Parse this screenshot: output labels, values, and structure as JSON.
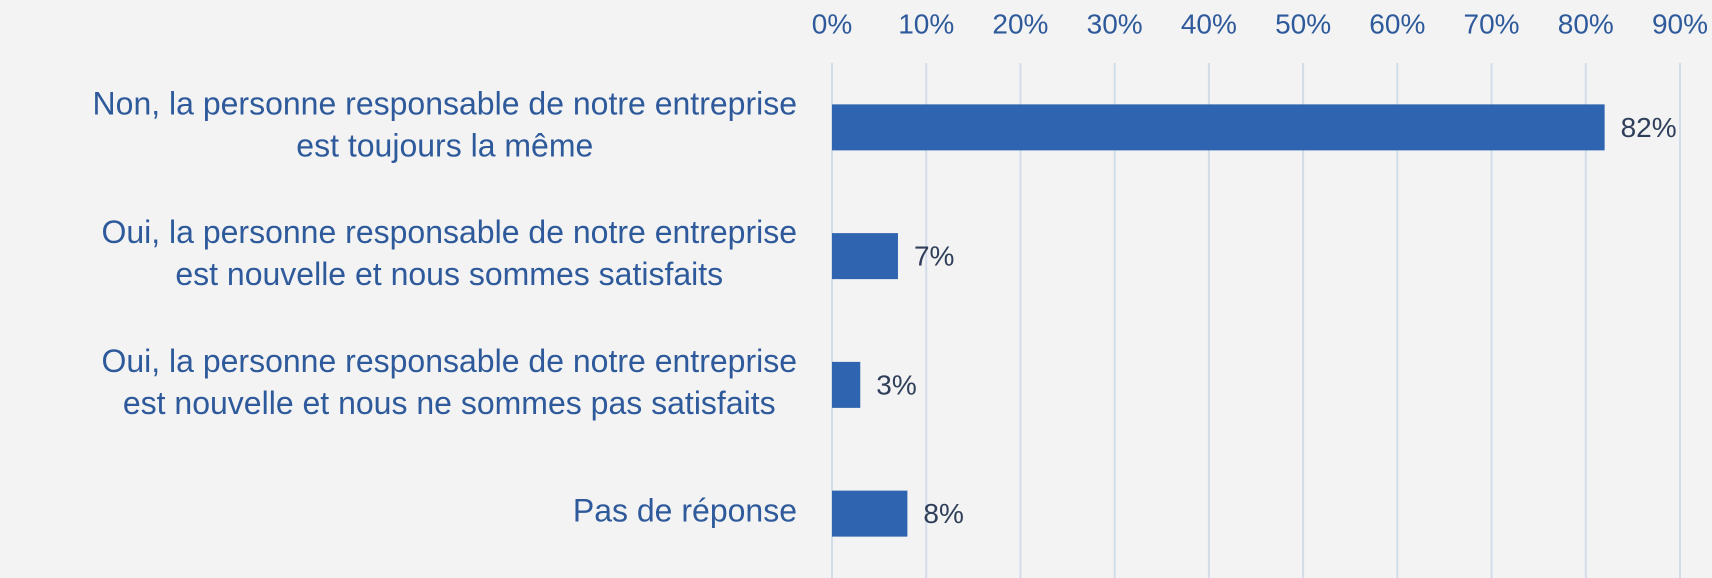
{
  "chart_data": {
    "type": "barh",
    "categories": [
      "Non, la personne responsable de notre entreprise\nest toujours la même",
      "Oui, la personne responsable de notre entreprise\nest nouvelle et nous sommes satisfaits",
      "Oui, la personne responsable de notre entreprise\nest nouvelle et nous ne sommes pas satisfaits",
      "Pas de réponse"
    ],
    "values": [
      82,
      7,
      3,
      8
    ],
    "value_labels": [
      "82%",
      "7%",
      "3%",
      "8%"
    ],
    "color": "#2e64b0",
    "xlim": [
      0,
      90
    ],
    "xticks": [
      {
        "value": 0,
        "label": "0%"
      },
      {
        "value": 10,
        "label": "10%"
      },
      {
        "value": 20,
        "label": "20%"
      },
      {
        "value": 30,
        "label": "30%"
      },
      {
        "value": 40,
        "label": "40%"
      },
      {
        "value": 50,
        "label": "50%"
      },
      {
        "value": 60,
        "label": "60%"
      },
      {
        "value": 70,
        "label": "70%"
      },
      {
        "value": 80,
        "label": "80%"
      },
      {
        "value": 90,
        "label": "90%"
      }
    ],
    "grid": true
  }
}
